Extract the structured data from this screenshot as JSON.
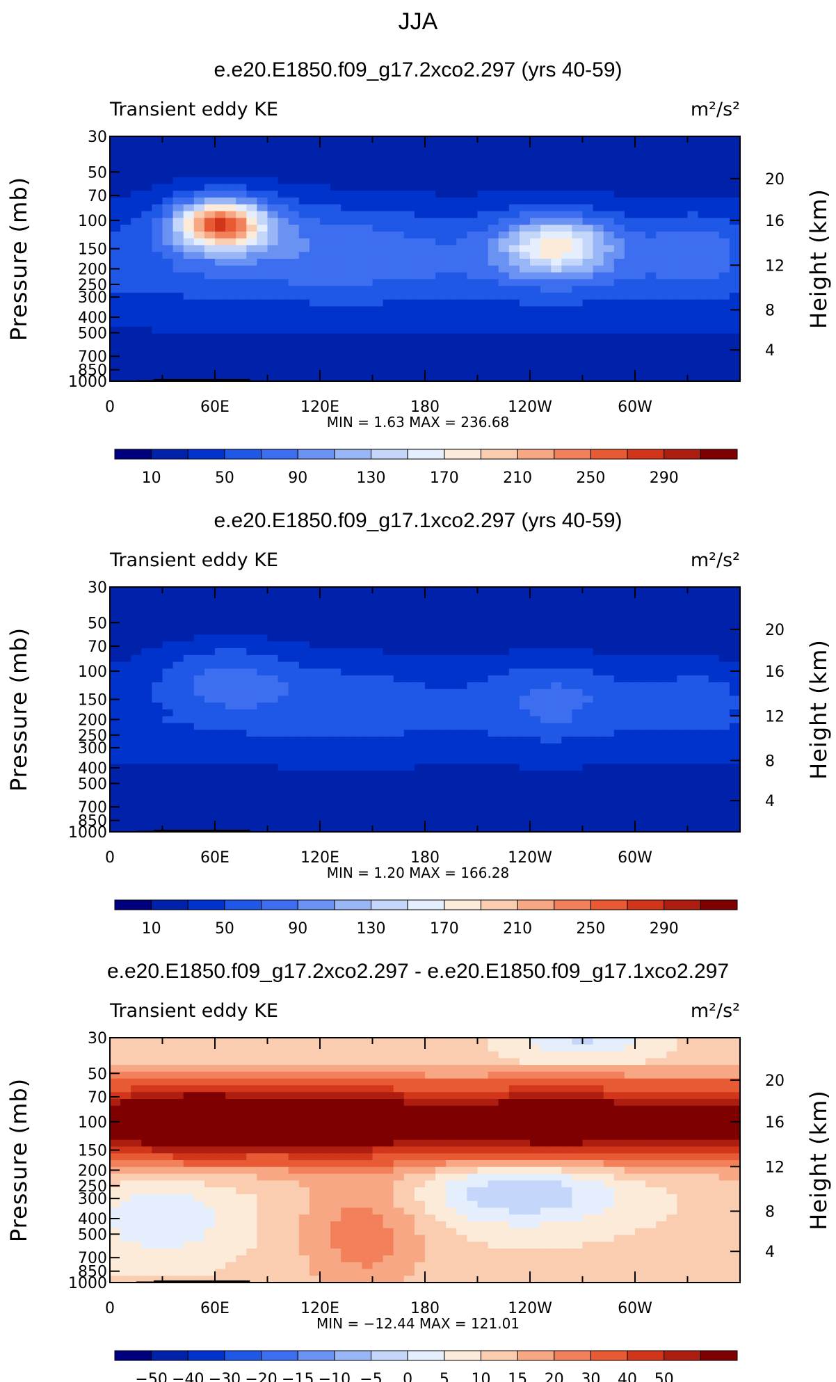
{
  "page_title": "JJA",
  "chart_data": [
    {
      "type": "heatmap",
      "title": "e.e20.E1850.f09_g17.2xco2.297 (yrs 40-59)",
      "left_label": "Transient eddy KE",
      "units": "m²/s²",
      "ylabel": "Pressure (mb)",
      "y2label": "Height (km)",
      "x_ticks": [
        "0",
        "60E",
        "120E",
        "180",
        "120W",
        "60W"
      ],
      "y_ticks": [
        "30",
        "50",
        "70",
        "100",
        "150",
        "200",
        "250",
        "300",
        "400",
        "500",
        "700",
        "850",
        "1000"
      ],
      "y2_ticks": [
        "20",
        "16",
        "12",
        "8",
        "4"
      ],
      "stats": "MIN =    1.63   MAX = 236.68",
      "colorbar_labels": [
        "10",
        "50",
        "90",
        "130",
        "170",
        "210",
        "250",
        "290"
      ],
      "colorbar_colors": [
        "#00007f",
        "#0022aa",
        "#0033cc",
        "#1f57e6",
        "#3d6ef0",
        "#6a92f2",
        "#98b6f5",
        "#c4d6fa",
        "#e4eefc",
        "#fdebd9",
        "#fbcdb0",
        "#f8a784",
        "#f2805b",
        "#e85a34",
        "#d1361b",
        "#ad1d10",
        "#7f0000"
      ],
      "field": "control"
    },
    {
      "type": "heatmap",
      "title": "e.e20.E1850.f09_g17.1xco2.297 (yrs 40-59)",
      "left_label": "Transient eddy KE",
      "units": "m²/s²",
      "ylabel": "Pressure (mb)",
      "y2label": "Height (km)",
      "x_ticks": [
        "0",
        "60E",
        "120E",
        "180",
        "120W",
        "60W"
      ],
      "y_ticks": [
        "30",
        "50",
        "70",
        "100",
        "150",
        "200",
        "250",
        "300",
        "400",
        "500",
        "700",
        "850",
        "1000"
      ],
      "y2_ticks": [
        "20",
        "16",
        "12",
        "8",
        "4"
      ],
      "stats": "MIN =    1.20   MAX = 166.28",
      "colorbar_labels": [
        "10",
        "50",
        "90",
        "130",
        "170",
        "210",
        "250",
        "290"
      ],
      "colorbar_colors": [
        "#00007f",
        "#0022aa",
        "#0033cc",
        "#1f57e6",
        "#3d6ef0",
        "#6a92f2",
        "#98b6f5",
        "#c4d6fa",
        "#e4eefc",
        "#fdebd9",
        "#fbcdb0",
        "#f8a784",
        "#f2805b",
        "#e85a34",
        "#d1361b",
        "#ad1d10",
        "#7f0000"
      ],
      "field": "base"
    },
    {
      "type": "heatmap",
      "title": "e.e20.E1850.f09_g17.2xco2.297 - e.e20.E1850.f09_g17.1xco2.297",
      "left_label": "Transient eddy KE",
      "units": "m²/s²",
      "ylabel": "Pressure (mb)",
      "y2label": "Height (km)",
      "x_ticks": [
        "0",
        "60E",
        "120E",
        "180",
        "120W",
        "60W"
      ],
      "y_ticks": [
        "30",
        "50",
        "70",
        "100",
        "150",
        "200",
        "250",
        "300",
        "400",
        "500",
        "700",
        "850",
        "1000"
      ],
      "y2_ticks": [
        "20",
        "16",
        "12",
        "8",
        "4"
      ],
      "stats": "MIN = −12.44   MAX = 121.01",
      "colorbar_labels": [
        "−50",
        "−40",
        "−30",
        "−20",
        "−15",
        "−10",
        "−5",
        "0",
        "5",
        "10",
        "15",
        "20",
        "30",
        "40",
        "50"
      ],
      "colorbar_colors": [
        "#00007f",
        "#0022aa",
        "#0033cc",
        "#1f57e6",
        "#3d6ef0",
        "#6a92f2",
        "#98b6f5",
        "#c4d6fa",
        "#e4eefc",
        "#fdebd9",
        "#fbcdb0",
        "#f8a784",
        "#f2805b",
        "#e85a34",
        "#d1361b",
        "#ad1d10",
        "#7f0000"
      ],
      "field": "diff"
    }
  ]
}
